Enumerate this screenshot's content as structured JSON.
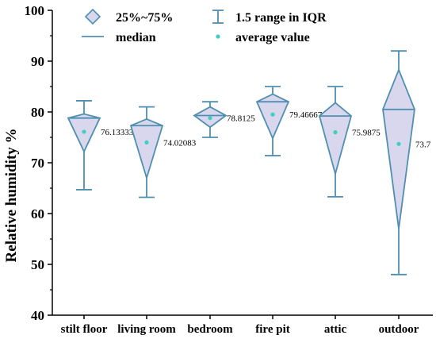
{
  "chart_data": {
    "type": "box",
    "ylabel": "Relative humidity %",
    "ylim": [
      40,
      100
    ],
    "yticks": [
      40,
      50,
      60,
      70,
      80,
      90,
      100
    ],
    "categories": [
      "stilt floor",
      "living room",
      "bedroom",
      "fire pit",
      "attic",
      "outdoor"
    ],
    "boxes": [
      {
        "whisker_low": 64.7,
        "q1": 72.2,
        "median": 78.8,
        "q3": 79.6,
        "whisker_high": 82.2,
        "mean": 76.1,
        "mean_label": "76.13333"
      },
      {
        "whisker_low": 63.2,
        "q1": 67.0,
        "median": 77.3,
        "q3": 78.6,
        "whisker_high": 81.0,
        "mean": 74.0,
        "mean_label": "74.02083"
      },
      {
        "whisker_low": 75.0,
        "q1": 77.0,
        "median": 79.3,
        "q3": 81.0,
        "whisker_high": 82.0,
        "mean": 78.8,
        "mean_label": "78.8125"
      },
      {
        "whisker_low": 71.4,
        "q1": 74.8,
        "median": 82.0,
        "q3": 83.5,
        "whisker_high": 85.0,
        "mean": 79.5,
        "mean_label": "79.46667"
      },
      {
        "whisker_low": 63.3,
        "q1": 67.8,
        "median": 79.2,
        "q3": 81.8,
        "whisker_high": 85.0,
        "mean": 76.0,
        "mean_label": "75.9875"
      },
      {
        "whisker_low": 48.0,
        "q1": 57.0,
        "median": 80.5,
        "q3": 88.3,
        "whisker_high": 92.0,
        "mean": 73.7,
        "mean_label": "73.7"
      }
    ],
    "legend": {
      "box": "25%~75%",
      "range": "1.5 range in IQR",
      "median": "median",
      "mean": "average value"
    },
    "colors": {
      "line": "#4f8fb0",
      "fill": "#d9d7ee",
      "mean": "#3ecfc1",
      "axis": "#000000"
    }
  }
}
